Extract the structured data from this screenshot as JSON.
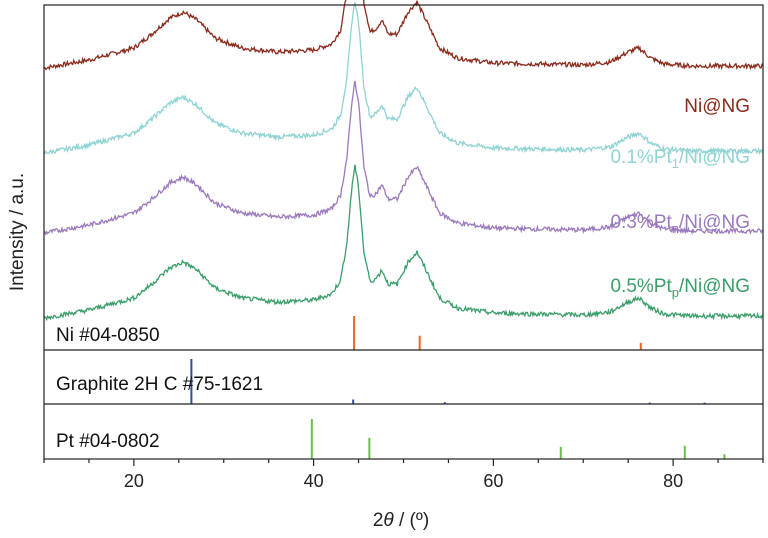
{
  "chart_data": {
    "type": "line",
    "xlabel": "2θ / (º)",
    "ylabel": "Intensity / a.u.",
    "xlim": [
      10,
      90
    ],
    "xticks": [
      20,
      40,
      60,
      80
    ],
    "grid": false,
    "series": [
      {
        "name": "Ni@NG",
        "label_parts": {
          "pre": "Ni@NG",
          "sub": "",
          "post": ""
        },
        "color": "#8b2a1a",
        "offset": 2.5,
        "x": [
          10,
          15,
          20,
          22,
          24,
          25.5,
          27,
          29,
          32,
          36,
          40,
          42,
          43,
          43.7,
          44.3,
          44.6,
          45,
          45.6,
          46.3,
          47,
          47.6,
          48.3,
          49.3,
          50.5,
          51.5,
          52.6,
          54,
          56,
          60,
          65,
          70,
          73,
          75,
          76.2,
          77.5,
          79,
          82,
          86,
          90
        ],
        "y": [
          0.0,
          0.08,
          0.2,
          0.34,
          0.5,
          0.56,
          0.48,
          0.3,
          0.2,
          0.16,
          0.18,
          0.24,
          0.38,
          0.75,
          1.35,
          1.52,
          1.3,
          0.65,
          0.36,
          0.4,
          0.48,
          0.34,
          0.34,
          0.56,
          0.66,
          0.46,
          0.2,
          0.1,
          0.05,
          0.04,
          0.03,
          0.06,
          0.16,
          0.2,
          0.1,
          0.04,
          0.02,
          0.02,
          0.02
        ]
      },
      {
        "name": "0.1%Pt1/Ni@NG",
        "label_parts": {
          "pre": "0.1%Pt",
          "sub": "1",
          "post": "/Ni@NG"
        },
        "color": "#8fd3d3",
        "offset": 1.65,
        "x": [
          10,
          15,
          20,
          22,
          24,
          25.5,
          27,
          29,
          32,
          36,
          40,
          42,
          43,
          43.7,
          44.3,
          44.6,
          45,
          45.6,
          46.3,
          47,
          47.6,
          48.3,
          49.3,
          50.5,
          51.5,
          52.6,
          54,
          56,
          60,
          65,
          70,
          73,
          75,
          76.2,
          77.5,
          79,
          82,
          86,
          90
        ],
        "y": [
          0.0,
          0.08,
          0.2,
          0.34,
          0.5,
          0.56,
          0.48,
          0.3,
          0.2,
          0.16,
          0.18,
          0.24,
          0.38,
          0.75,
          1.35,
          1.52,
          1.3,
          0.65,
          0.36,
          0.4,
          0.48,
          0.34,
          0.34,
          0.56,
          0.66,
          0.46,
          0.2,
          0.1,
          0.05,
          0.04,
          0.03,
          0.06,
          0.16,
          0.2,
          0.1,
          0.04,
          0.02,
          0.02,
          0.02
        ]
      },
      {
        "name": "0.3%Ptn/Ni@NG",
        "label_parts": {
          "pre": "0.3%Pt",
          "sub": "n",
          "post": "/Ni@NG"
        },
        "color": "#9a79bd",
        "offset": 0.85,
        "x": [
          10,
          15,
          20,
          22,
          24,
          25.5,
          27,
          29,
          32,
          36,
          40,
          42,
          43,
          43.7,
          44.3,
          44.6,
          45,
          45.6,
          46.3,
          47,
          47.6,
          48.3,
          49.3,
          50.5,
          51.5,
          52.6,
          54,
          56,
          60,
          65,
          70,
          73,
          75,
          76.2,
          77.5,
          79,
          82,
          86,
          90
        ],
        "y": [
          0.0,
          0.08,
          0.2,
          0.34,
          0.5,
          0.56,
          0.48,
          0.3,
          0.2,
          0.16,
          0.18,
          0.24,
          0.38,
          0.75,
          1.35,
          1.52,
          1.3,
          0.65,
          0.36,
          0.4,
          0.48,
          0.34,
          0.34,
          0.56,
          0.66,
          0.46,
          0.2,
          0.1,
          0.05,
          0.04,
          0.03,
          0.06,
          0.16,
          0.2,
          0.1,
          0.04,
          0.02,
          0.02,
          0.02
        ]
      },
      {
        "name": "0.5%Ptp/Ni@NG",
        "label_parts": {
          "pre": "0.5%Pt",
          "sub": "p",
          "post": "/Ni@NG"
        },
        "color": "#3a9e6a",
        "offset": 0.0,
        "x": [
          10,
          15,
          20,
          22,
          24,
          25.5,
          27,
          29,
          32,
          36,
          40,
          42,
          43,
          43.7,
          44.3,
          44.6,
          45,
          45.6,
          46.3,
          47,
          47.6,
          48.3,
          49.3,
          50.5,
          51.5,
          52.6,
          54,
          56,
          60,
          65,
          70,
          73,
          75,
          76.2,
          77.5,
          79,
          82,
          86,
          90
        ],
        "y": [
          0.0,
          0.08,
          0.2,
          0.34,
          0.5,
          0.56,
          0.48,
          0.3,
          0.2,
          0.16,
          0.18,
          0.24,
          0.38,
          0.75,
          1.35,
          1.52,
          1.3,
          0.65,
          0.36,
          0.4,
          0.48,
          0.34,
          0.34,
          0.56,
          0.66,
          0.46,
          0.2,
          0.1,
          0.05,
          0.04,
          0.03,
          0.06,
          0.16,
          0.2,
          0.1,
          0.04,
          0.02,
          0.02,
          0.02
        ]
      }
    ],
    "references": [
      {
        "label": "Ni #04-0850",
        "color": "#f26522",
        "peaks": [
          {
            "x": 44.5,
            "h": 1.0
          },
          {
            "x": 51.8,
            "h": 0.42
          },
          {
            "x": 76.4,
            "h": 0.21
          }
        ]
      },
      {
        "label": "Graphite 2H C #75-1621",
        "color": "#2e4f9e",
        "peaks": [
          {
            "x": 26.4,
            "h": 1.0
          },
          {
            "x": 44.4,
            "h": 0.1
          },
          {
            "x": 54.6,
            "h": 0.04
          },
          {
            "x": 77.4,
            "h": 0.03
          },
          {
            "x": 83.5,
            "h": 0.03
          }
        ]
      },
      {
        "label": "Pt #04-0802",
        "color": "#6cc04a",
        "peaks": [
          {
            "x": 39.8,
            "h": 1.0
          },
          {
            "x": 46.2,
            "h": 0.53
          },
          {
            "x": 67.5,
            "h": 0.3
          },
          {
            "x": 81.3,
            "h": 0.33
          },
          {
            "x": 85.7,
            "h": 0.12
          }
        ]
      }
    ]
  }
}
